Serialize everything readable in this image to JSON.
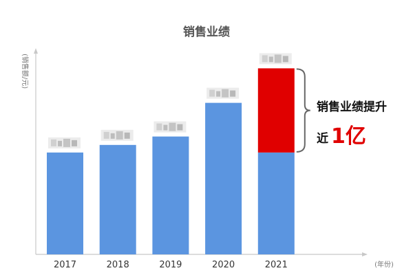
{
  "chart_data": {
    "type": "bar",
    "title": "销售业绩",
    "ylabel": "(销售额/元)",
    "xlabel": "(年份)",
    "categories": [
      "2017",
      "2018",
      "2019",
      "2020",
      "2021"
    ],
    "values": [
      121000000,
      130000000,
      140000000,
      180000000,
      221000000
    ],
    "ylim": [
      0,
      245000000
    ],
    "grid": false,
    "data_labels": "blurred",
    "highlight": {
      "category": "2021",
      "baseline_value": 121000000,
      "increase_value": 100000000,
      "annotation_line1": "销售业绩提升",
      "annotation_prefix": "近",
      "annotation_amount": "1亿"
    },
    "colors": {
      "bar": "#5b95e0",
      "highlight": "#e00000",
      "axis": "#c8c8c8",
      "label_blur": "#c9c9c9"
    }
  }
}
